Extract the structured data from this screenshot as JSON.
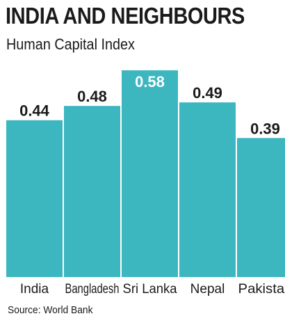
{
  "chart_data": {
    "type": "bar",
    "title": "INDIA AND NEIGHBOURS",
    "subtitle": "Human Capital Index",
    "categories": [
      "India",
      "Bangladesh",
      "Sri Lanka",
      "Nepal",
      "Pakistan"
    ],
    "values": [
      0.44,
      0.48,
      0.58,
      0.49,
      0.39
    ],
    "value_labels": [
      "0.44",
      "0.48",
      "0.58",
      "0.49",
      "0.39"
    ],
    "highlight_index": 2,
    "ylim": [
      0,
      0.58
    ],
    "grid": false,
    "source": "Source: World Bank",
    "colors": {
      "bar": "#3cb6bf",
      "text": "#1a1a1a",
      "highlight_label": "#ffffff"
    }
  }
}
